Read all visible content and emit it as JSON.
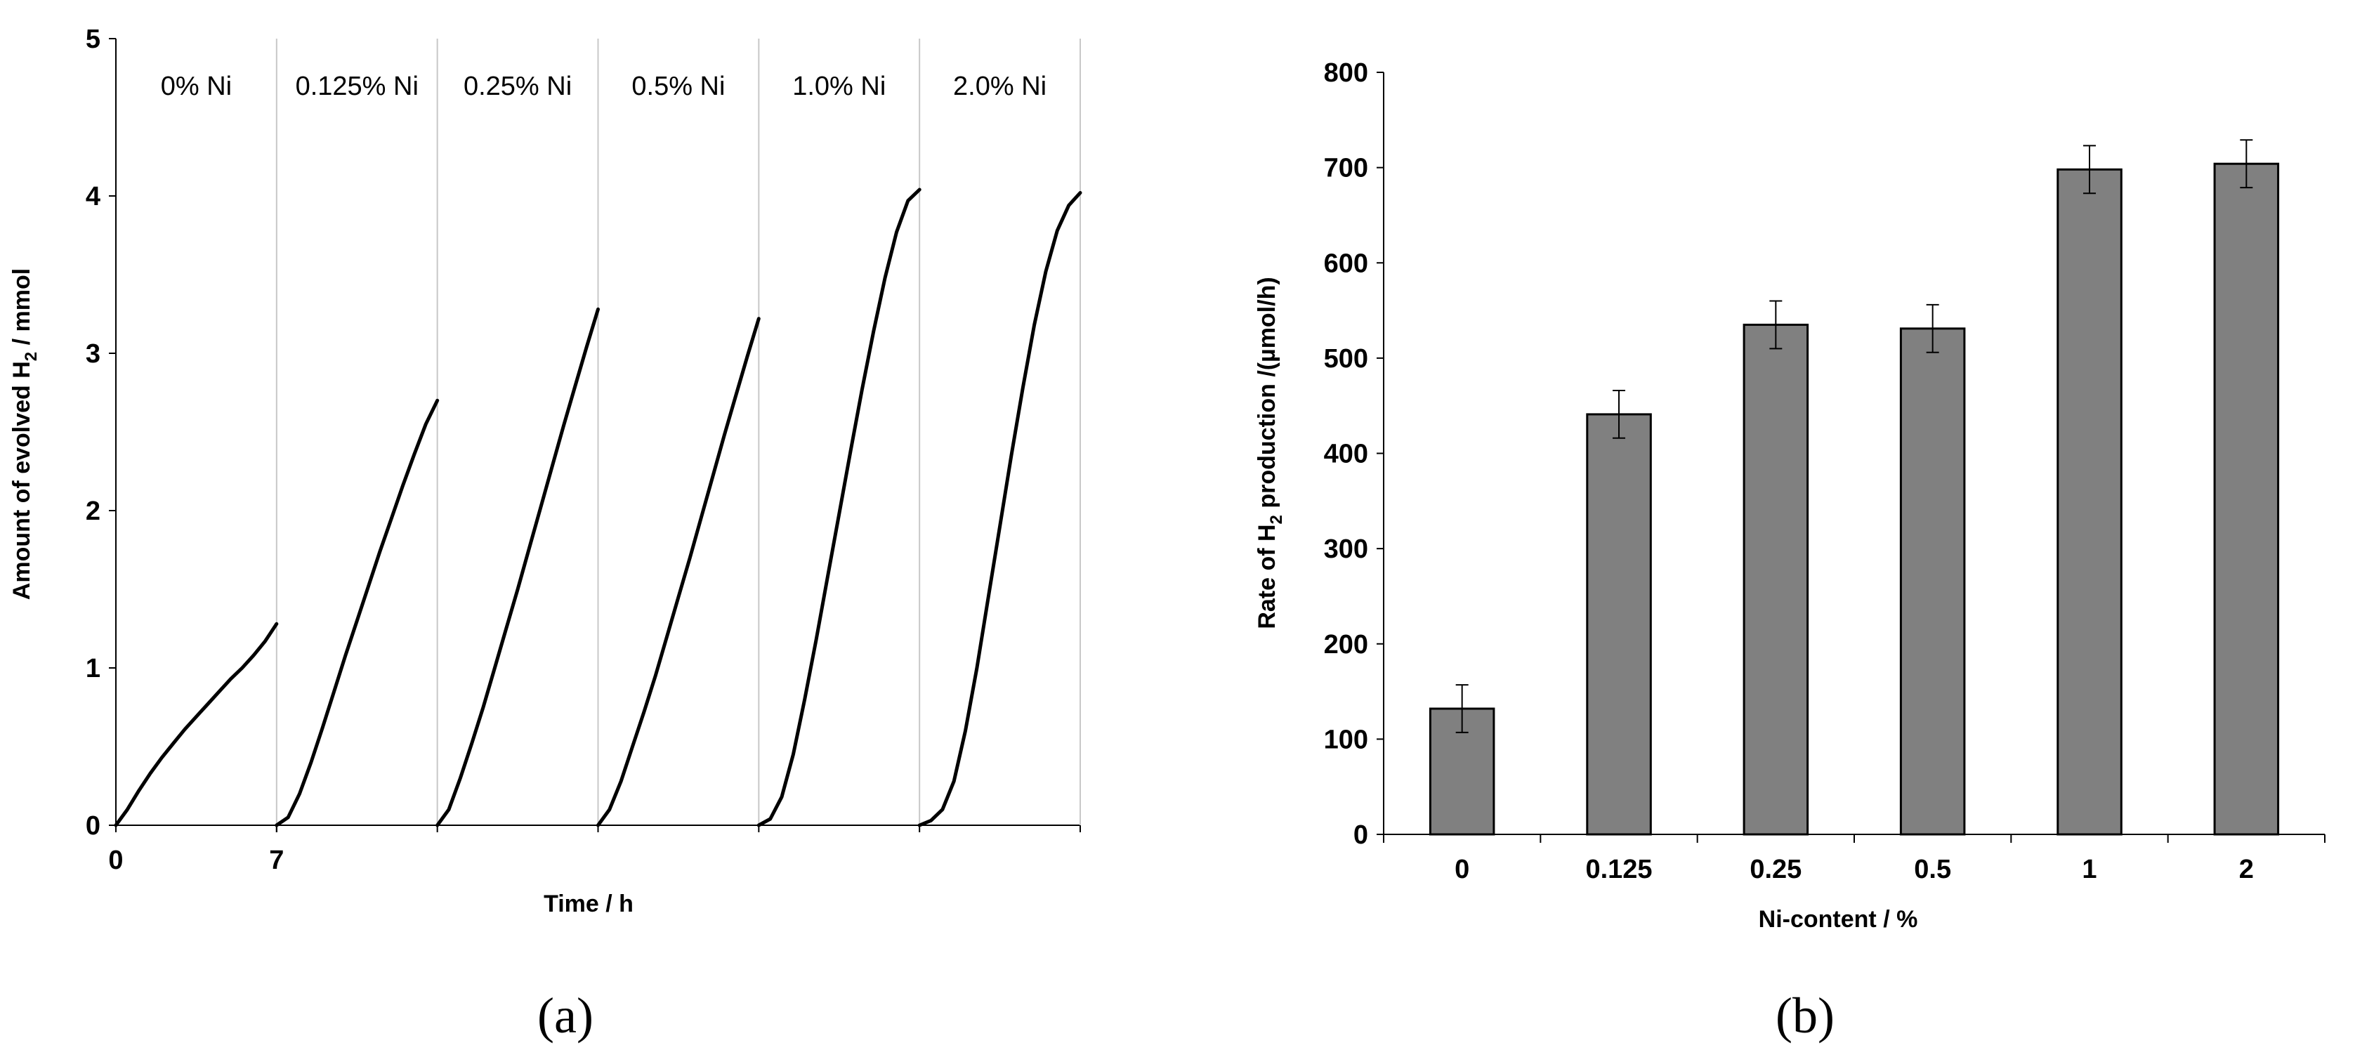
{
  "chart_data": [
    {
      "type": "line",
      "caption": "(a)",
      "ylabel_prefix": "Amount of evolved H",
      "ylabel_sub": "2",
      "ylabel_suffix": " / mmol",
      "xlabel": "Time / h",
      "ylim": [
        0,
        5
      ],
      "yticks": [
        "0",
        "1",
        "2",
        "3",
        "4",
        "5"
      ],
      "xticks": [
        "0",
        "7"
      ],
      "segment_hours": 7,
      "series": [
        {
          "name": "0% Ni",
          "x": [
            0,
            0.5,
            1,
            1.5,
            2,
            2.5,
            3,
            3.5,
            4,
            4.5,
            5,
            5.5,
            6,
            6.5,
            7
          ],
          "y": [
            0,
            0.1,
            0.22,
            0.33,
            0.43,
            0.52,
            0.61,
            0.69,
            0.77,
            0.85,
            0.93,
            1.0,
            1.08,
            1.17,
            1.28
          ]
        },
        {
          "name": "0.125% Ni",
          "x": [
            0,
            0.5,
            1,
            1.5,
            2,
            2.5,
            3,
            3.5,
            4,
            4.5,
            5,
            5.5,
            6,
            6.5,
            7
          ],
          "y": [
            0,
            0.05,
            0.2,
            0.4,
            0.62,
            0.85,
            1.08,
            1.3,
            1.52,
            1.74,
            1.95,
            2.16,
            2.36,
            2.55,
            2.7
          ]
        },
        {
          "name": "0.25% Ni",
          "x": [
            0,
            0.5,
            1,
            1.5,
            2,
            2.5,
            3,
            3.5,
            4,
            4.5,
            5,
            5.5,
            6,
            6.5,
            7
          ],
          "y": [
            0,
            0.1,
            0.3,
            0.52,
            0.75,
            1.0,
            1.25,
            1.5,
            1.76,
            2.02,
            2.28,
            2.54,
            2.79,
            3.04,
            3.28
          ]
        },
        {
          "name": "0.5% Ni",
          "x": [
            0,
            0.5,
            1,
            1.5,
            2,
            2.5,
            3,
            3.5,
            4,
            4.5,
            5,
            5.5,
            6,
            6.5,
            7
          ],
          "y": [
            0,
            0.1,
            0.28,
            0.5,
            0.72,
            0.95,
            1.2,
            1.45,
            1.7,
            1.96,
            2.22,
            2.48,
            2.73,
            2.98,
            3.22
          ]
        },
        {
          "name": "1.0% Ni",
          "x": [
            0,
            0.5,
            1,
            1.5,
            2,
            2.5,
            3,
            3.5,
            4,
            4.5,
            5,
            5.5,
            6,
            6.5,
            7
          ],
          "y": [
            0,
            0.04,
            0.18,
            0.45,
            0.8,
            1.18,
            1.58,
            1.98,
            2.38,
            2.77,
            3.14,
            3.48,
            3.77,
            3.97,
            4.04
          ]
        },
        {
          "name": "2.0% Ni",
          "x": [
            0,
            0.5,
            1,
            1.5,
            2,
            2.5,
            3,
            3.5,
            4,
            4.5,
            5,
            5.5,
            6,
            6.5,
            7
          ],
          "y": [
            0,
            0.03,
            0.1,
            0.28,
            0.6,
            1.0,
            1.45,
            1.9,
            2.35,
            2.78,
            3.18,
            3.52,
            3.78,
            3.94,
            4.02
          ]
        }
      ]
    },
    {
      "type": "bar",
      "caption": "(b)",
      "ylabel_prefix": "Rate of H",
      "ylabel_sub": "2",
      "ylabel_suffix": " production /(µmol/h)",
      "xlabel": "Ni-content / %",
      "ylim": [
        0,
        800
      ],
      "yticks": [
        "0",
        "100",
        "200",
        "300",
        "400",
        "500",
        "600",
        "700",
        "800"
      ],
      "categories": [
        "0",
        "0.125",
        "0.25",
        "0.5",
        "1",
        "2"
      ],
      "values": [
        132,
        441,
        535,
        531,
        698,
        704
      ],
      "errors": [
        25,
        25,
        25,
        25,
        25,
        25
      ],
      "bar_color": "#808080"
    }
  ]
}
